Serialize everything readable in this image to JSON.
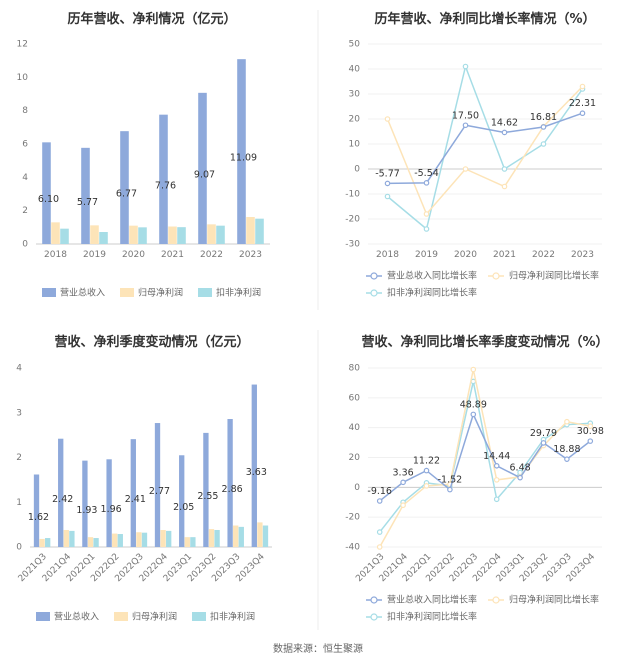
{
  "source": "数据来源：恒生聚源",
  "colors": {
    "revenue": "#8ea9db",
    "parent": "#fde4b8",
    "deducted": "#a6dde6"
  },
  "chart_data": [
    {
      "id": "annual_value",
      "type": "bar",
      "title": "历年营收、净利情况（亿元）",
      "categories": [
        "2018",
        "2019",
        "2020",
        "2021",
        "2022",
        "2023"
      ],
      "ylim": [
        0,
        12
      ],
      "yticks": [
        "0",
        "2",
        "4",
        "6",
        "8",
        "10",
        "12"
      ],
      "legend_position": "bottom",
      "series": [
        {
          "name": "营业总收入",
          "values": [
            6.1,
            5.77,
            6.77,
            7.76,
            9.07,
            11.09
          ],
          "labels": [
            "6.10",
            "5.77",
            "6.77",
            "7.76",
            "9.07",
            "11.09"
          ]
        },
        {
          "name": "归母净利润",
          "values": [
            1.3,
            1.12,
            1.1,
            1.05,
            1.18,
            1.62
          ]
        },
        {
          "name": "扣非净利润",
          "values": [
            0.92,
            0.72,
            1.0,
            1.01,
            1.1,
            1.52
          ]
        }
      ]
    },
    {
      "id": "annual_growth",
      "type": "line",
      "title": "历年营收、净利同比增长率情况（%）",
      "categories": [
        "2018",
        "2019",
        "2020",
        "2021",
        "2022",
        "2023"
      ],
      "ylim": [
        -30,
        50
      ],
      "yticks": [
        "-30",
        "-20",
        "-10",
        "0",
        "10",
        "20",
        "30",
        "40",
        "50"
      ],
      "legend_position": "bottom",
      "series": [
        {
          "name": "营业总收入同比增长率",
          "values": [
            -5.77,
            -5.54,
            17.5,
            14.62,
            16.81,
            22.31
          ],
          "labels": [
            "-5.77",
            "-5.54",
            "17.50",
            "14.62",
            "16.81",
            "22.31"
          ]
        },
        {
          "name": "归母净利润同比增长率",
          "values": [
            20.0,
            -18.0,
            0.0,
            -7.0,
            17.0,
            33.0
          ]
        },
        {
          "name": "扣非净利润同比增长率",
          "values": [
            -11.0,
            -24.0,
            41.0,
            0.0,
            10.0,
            32.0
          ]
        }
      ]
    },
    {
      "id": "quarter_value",
      "type": "bar",
      "title": "营收、净利季度变动情况（亿元）",
      "categories": [
        "2021Q3",
        "2021Q4",
        "2022Q1",
        "2022Q2",
        "2022Q3",
        "2022Q4",
        "2023Q1",
        "2023Q2",
        "2023Q3",
        "2023Q4"
      ],
      "ylim": [
        0,
        4
      ],
      "yticks": [
        "0",
        "1",
        "2",
        "3",
        "4"
      ],
      "legend_position": "bottom",
      "series": [
        {
          "name": "营业总收入",
          "values": [
            1.62,
            2.42,
            1.93,
            1.96,
            2.41,
            2.77,
            2.05,
            2.55,
            2.86,
            3.63
          ],
          "labels": [
            "1.62",
            "2.42",
            "1.93",
            "1.96",
            "2.41",
            "2.77",
            "2.05",
            "2.55",
            "2.86",
            "3.63"
          ]
        },
        {
          "name": "归母净利润",
          "values": [
            0.18,
            0.38,
            0.22,
            0.3,
            0.33,
            0.38,
            0.22,
            0.4,
            0.48,
            0.55
          ]
        },
        {
          "name": "扣非净利润",
          "values": [
            0.2,
            0.36,
            0.2,
            0.29,
            0.32,
            0.36,
            0.22,
            0.38,
            0.45,
            0.48
          ]
        }
      ]
    },
    {
      "id": "quarter_growth",
      "type": "line",
      "title": "营收、净利同比增长率季度变动情况（%）",
      "categories": [
        "2021Q3",
        "2021Q4",
        "2022Q1",
        "2022Q2",
        "2022Q3",
        "2022Q4",
        "2023Q1",
        "2023Q2",
        "2023Q3",
        "2023Q4"
      ],
      "ylim": [
        -40,
        80
      ],
      "yticks": [
        "-40",
        "-20",
        "0",
        "20",
        "40",
        "60",
        "80"
      ],
      "legend_position": "bottom",
      "series": [
        {
          "name": "营业总收入同比增长率",
          "values": [
            -9.16,
            3.36,
            11.22,
            -1.52,
            48.89,
            14.44,
            6.48,
            29.79,
            18.88,
            30.98
          ],
          "labels": [
            "-9.16",
            "3.36",
            "11.22",
            "-1.52",
            "48.89",
            "14.44",
            "6.48",
            "29.79",
            "18.88",
            "30.98"
          ]
        },
        {
          "name": "归母净利润同比增长率",
          "values": [
            -40.0,
            -12.0,
            1.0,
            2.0,
            79.0,
            5.0,
            7.0,
            28.0,
            44.0,
            41.0
          ]
        },
        {
          "name": "扣非净利润同比增长率",
          "values": [
            -30.0,
            -10.0,
            3.0,
            1.0,
            71.0,
            -8.0,
            10.0,
            32.0,
            42.0,
            43.0
          ]
        }
      ]
    }
  ]
}
